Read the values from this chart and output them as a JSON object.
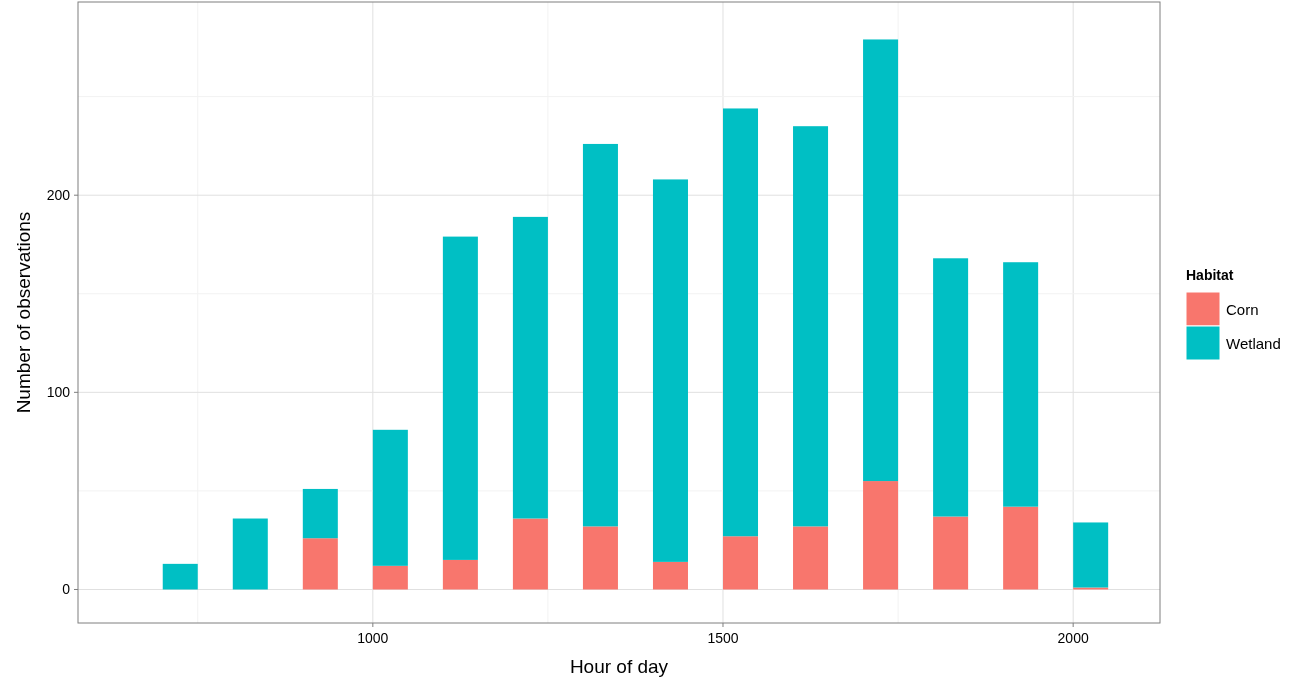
{
  "chart_data": {
    "type": "bar",
    "stacked": true,
    "xlabel": "Hour of day",
    "ylabel": "Number of observations",
    "legend_title": "Habitat",
    "legend": "right",
    "grid": true,
    "x": [
      725,
      825,
      925,
      1025,
      1125,
      1225,
      1325,
      1425,
      1525,
      1625,
      1725,
      1825,
      1925,
      2025
    ],
    "series": [
      {
        "name": "Corn",
        "color": "#f8766d",
        "values": [
          0,
          0,
          26,
          12,
          15,
          36,
          32,
          14,
          27,
          32,
          55,
          37,
          42,
          1
        ]
      },
      {
        "name": "Wetland",
        "color": "#00bfc4",
        "values": [
          13,
          36,
          25,
          69,
          164,
          153,
          194,
          194,
          217,
          203,
          224,
          131,
          124,
          33
        ]
      }
    ],
    "xlim": [
      579,
      2124
    ],
    "ylim": [
      -17,
      298
    ],
    "xticks": [
      {
        "value": 750,
        "label": null
      },
      1000,
      {
        "value": 1250,
        "label": null
      },
      1500,
      {
        "value": 1750,
        "label": null
      },
      2000
    ],
    "yticks": [
      0,
      {
        "value": 50,
        "label": null
      },
      100,
      {
        "value": 150,
        "label": null
      },
      200,
      {
        "value": 250,
        "label": null
      }
    ]
  }
}
